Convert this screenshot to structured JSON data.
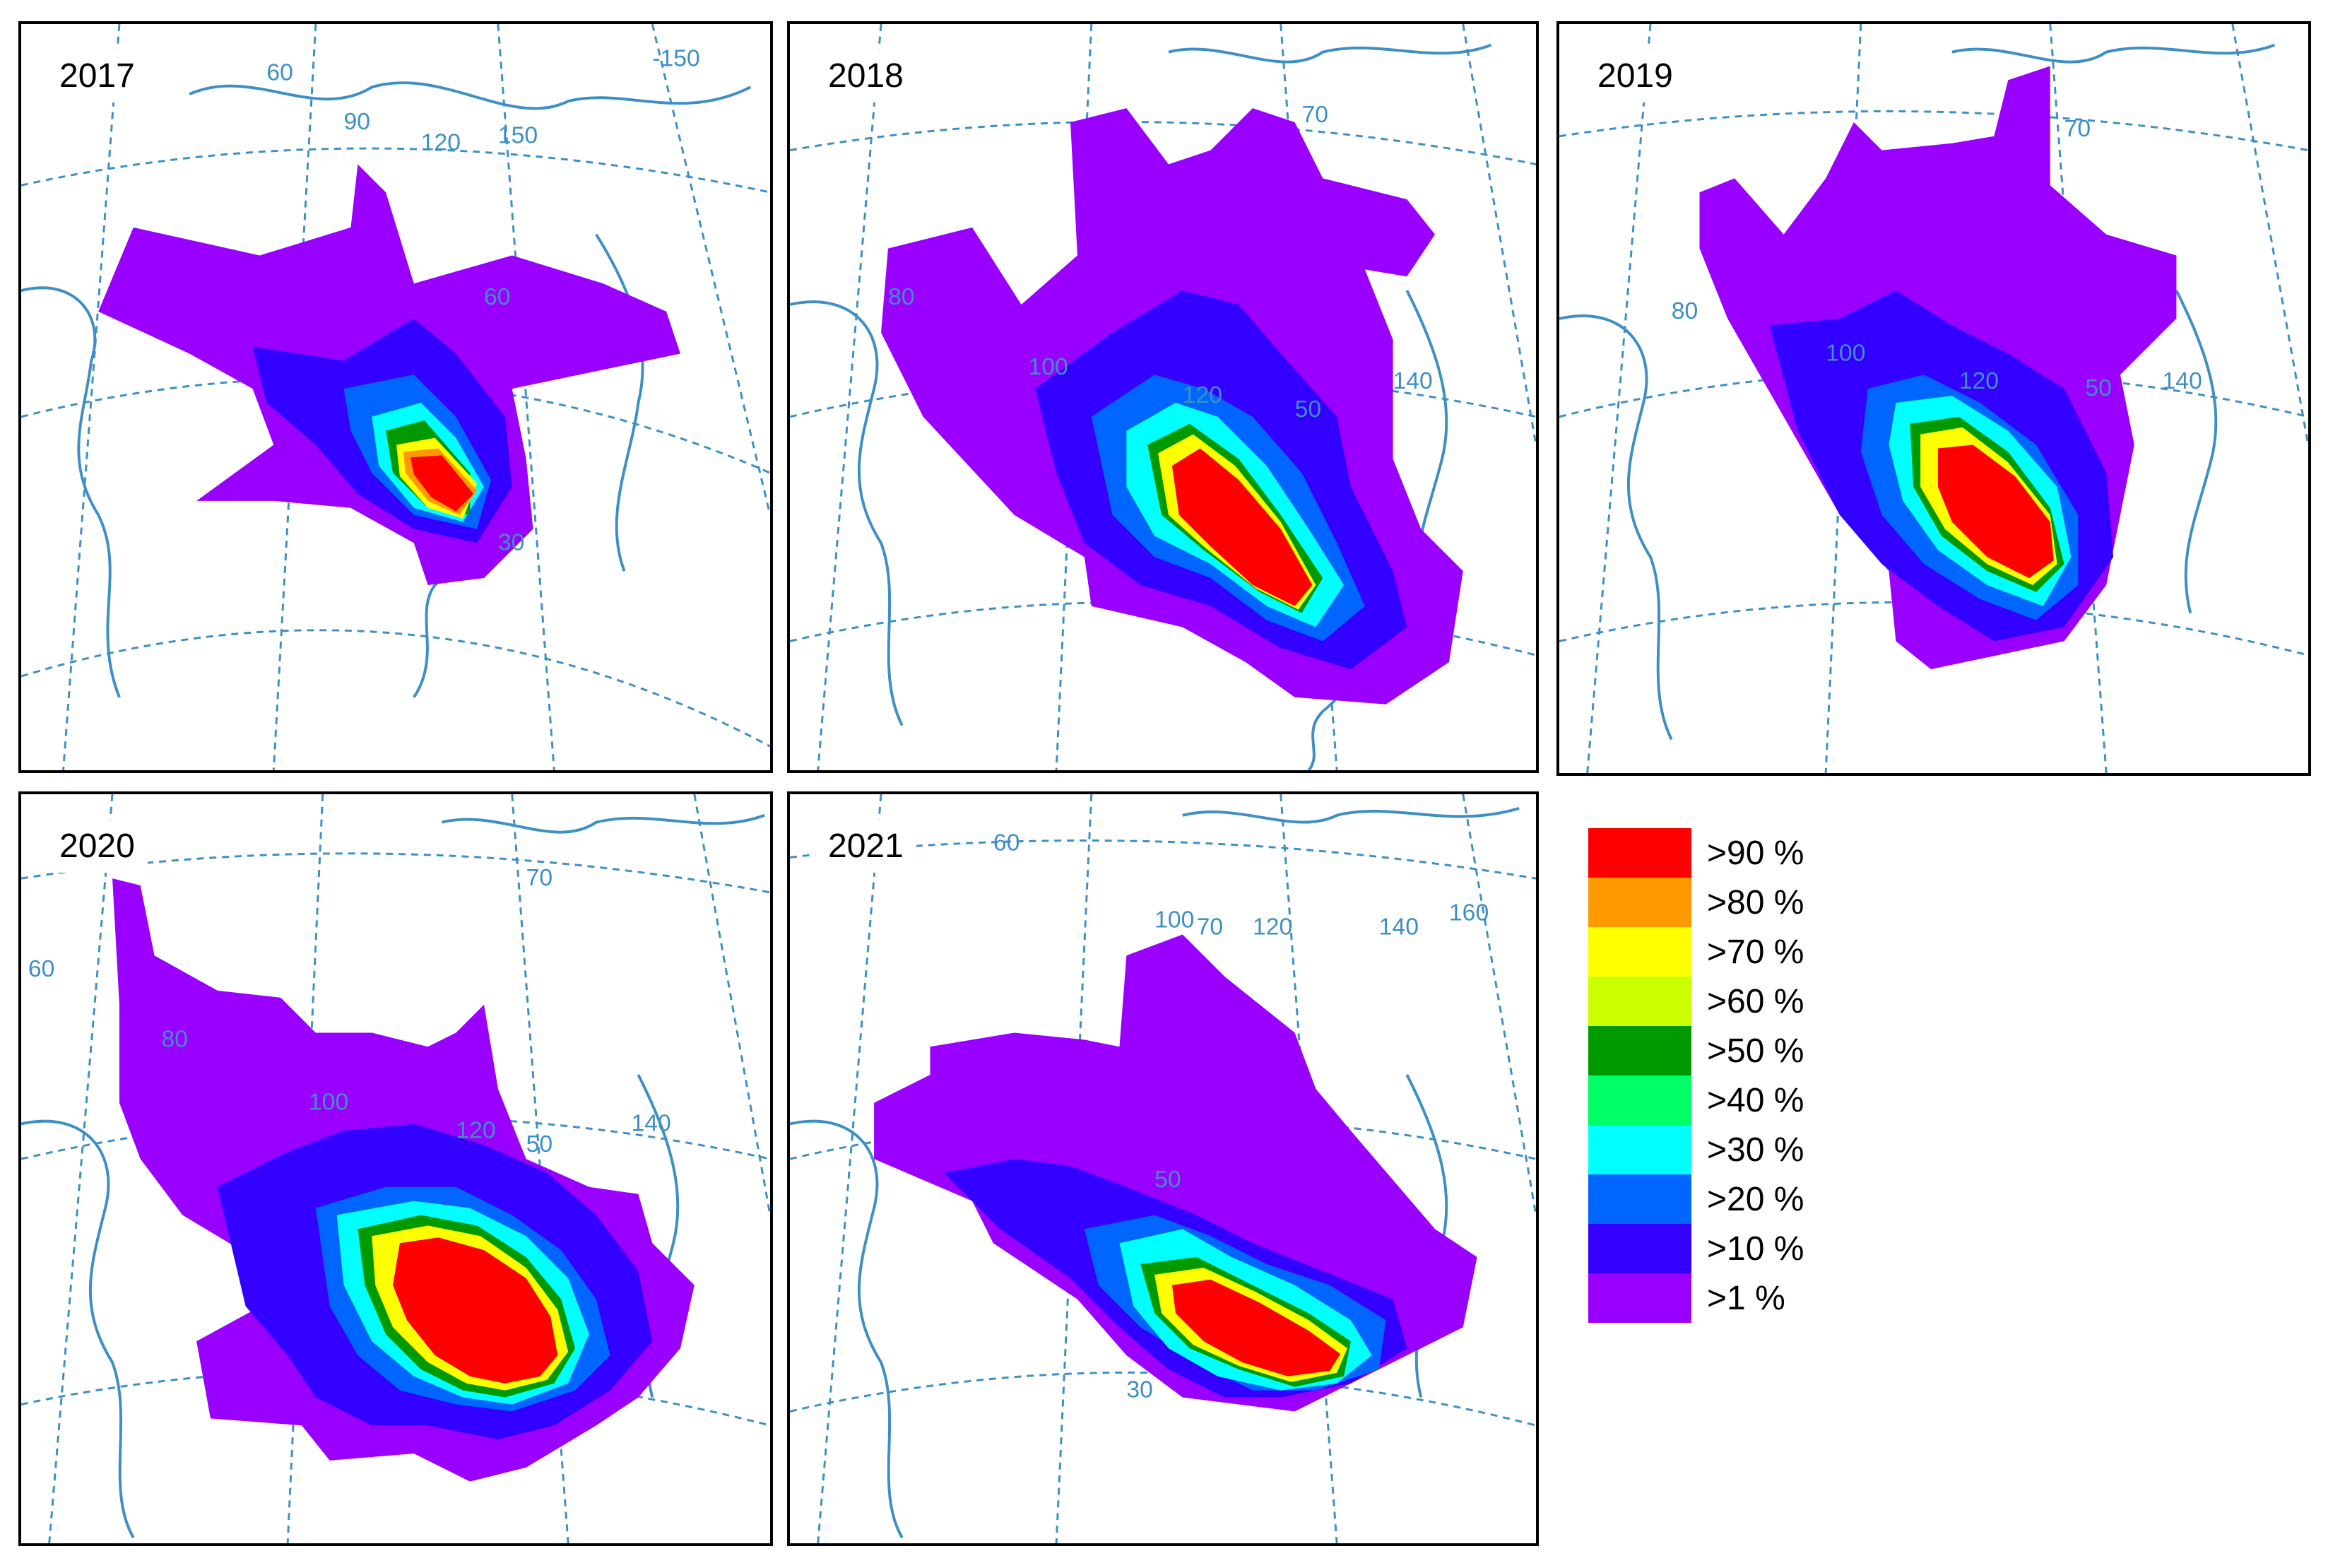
{
  "panels": [
    {
      "id": "p2017",
      "year": "2017",
      "grid_labels": [
        "60",
        "90",
        "120",
        "150",
        "-150",
        "60",
        "30"
      ]
    },
    {
      "id": "p2018",
      "year": "2018",
      "grid_labels": [
        "70",
        "80",
        "100",
        "120",
        "50",
        "140"
      ]
    },
    {
      "id": "p2019",
      "year": "2019",
      "grid_labels": [
        "70",
        "80",
        "100",
        "120",
        "50",
        "140"
      ]
    },
    {
      "id": "p2020",
      "year": "2020",
      "grid_labels": [
        "70",
        "60",
        "80",
        "100",
        "120",
        "50",
        "140"
      ]
    },
    {
      "id": "p2021",
      "year": "2021",
      "grid_labels": [
        "60",
        "100",
        "70",
        "120",
        "140",
        "160",
        "50",
        "30"
      ]
    }
  ],
  "legend": [
    {
      "label": ">90 %",
      "color": "#ff0000"
    },
    {
      "label": ">80 %",
      "color": "#ff9900"
    },
    {
      "label": ">70 %",
      "color": "#ffff00"
    },
    {
      "label": ">60 %",
      "color": "#ccff00"
    },
    {
      "label": ">50 %",
      "color": "#009900"
    },
    {
      "label": ">40 %",
      "color": "#00ff66"
    },
    {
      "label": ">30 %",
      "color": "#00ffff"
    },
    {
      "label": ">20 %",
      "color": "#0066ff"
    },
    {
      "label": ">10 %",
      "color": "#3300ff"
    },
    {
      "label": ">1 %",
      "color": "#9900ff"
    }
  ],
  "colors": {
    "coast": "#3e8fc4",
    "grid": "#3e8fc4",
    "frame": "#000000"
  }
}
